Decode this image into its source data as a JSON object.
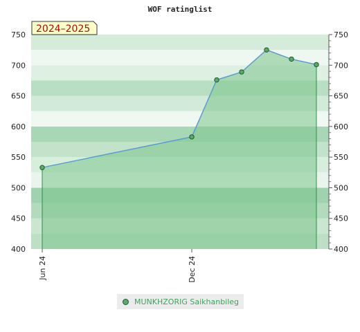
{
  "chart_data": {
    "type": "area",
    "title": "WOF ratinglist",
    "season_label": "2024–2025",
    "ylim": [
      400,
      750
    ],
    "yticks": [
      400,
      450,
      500,
      550,
      600,
      650,
      700,
      750
    ],
    "x_ticks": [
      {
        "label": "Jun 24",
        "x": "2024-06"
      },
      {
        "label": "Dec 24",
        "x": "2024-12"
      }
    ],
    "series": [
      {
        "name": "MUNKHZORIG Saikhanbileg",
        "points": [
          {
            "x": "2024-06",
            "y": 533
          },
          {
            "x": "2024-12",
            "y": 583
          },
          {
            "x": "2025-01",
            "y": 676
          },
          {
            "x": "2025-02",
            "y": 689
          },
          {
            "x": "2025-03",
            "y": 725
          },
          {
            "x": "2025-04",
            "y": 710
          },
          {
            "x": "2025-05",
            "y": 701
          }
        ]
      }
    ],
    "colors": {
      "fill": "#7cc48c",
      "line": "#5b9bd5",
      "edge": "#2e8b4e",
      "marker": "#5aa86a",
      "marker_border": "#1e5a2a"
    }
  }
}
